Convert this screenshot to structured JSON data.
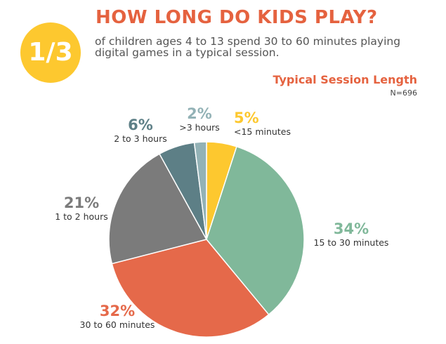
{
  "header": {
    "title": "HOW LONG DO KIDS PLAY?",
    "badge": "1/3",
    "statement": "of children ages 4 to 13 spend 30 to 60 minutes playing digital games in a typical session."
  },
  "colors": {
    "title": "#e5623f",
    "badge": "#fdc82f",
    "slices": [
      "#fdc82f",
      "#80b89a",
      "#e5694a",
      "#7b7b7b",
      "#5d7f86",
      "#93b2b6"
    ]
  },
  "chart_data": {
    "type": "pie",
    "title": "Typical Session Length",
    "subtitle": "N=696",
    "categories": [
      "<15 minutes",
      "15 to 30 minutes",
      "30 to 60 minutes",
      "1 to 2 hours",
      "2 to 3 hours",
      ">3 hours"
    ],
    "values": [
      5,
      34,
      32,
      21,
      6,
      2
    ],
    "labels": [
      "5%",
      "34%",
      "32%",
      "21%",
      "6%",
      "2%"
    ],
    "start": "12 o'clock",
    "direction": "clockwise"
  }
}
